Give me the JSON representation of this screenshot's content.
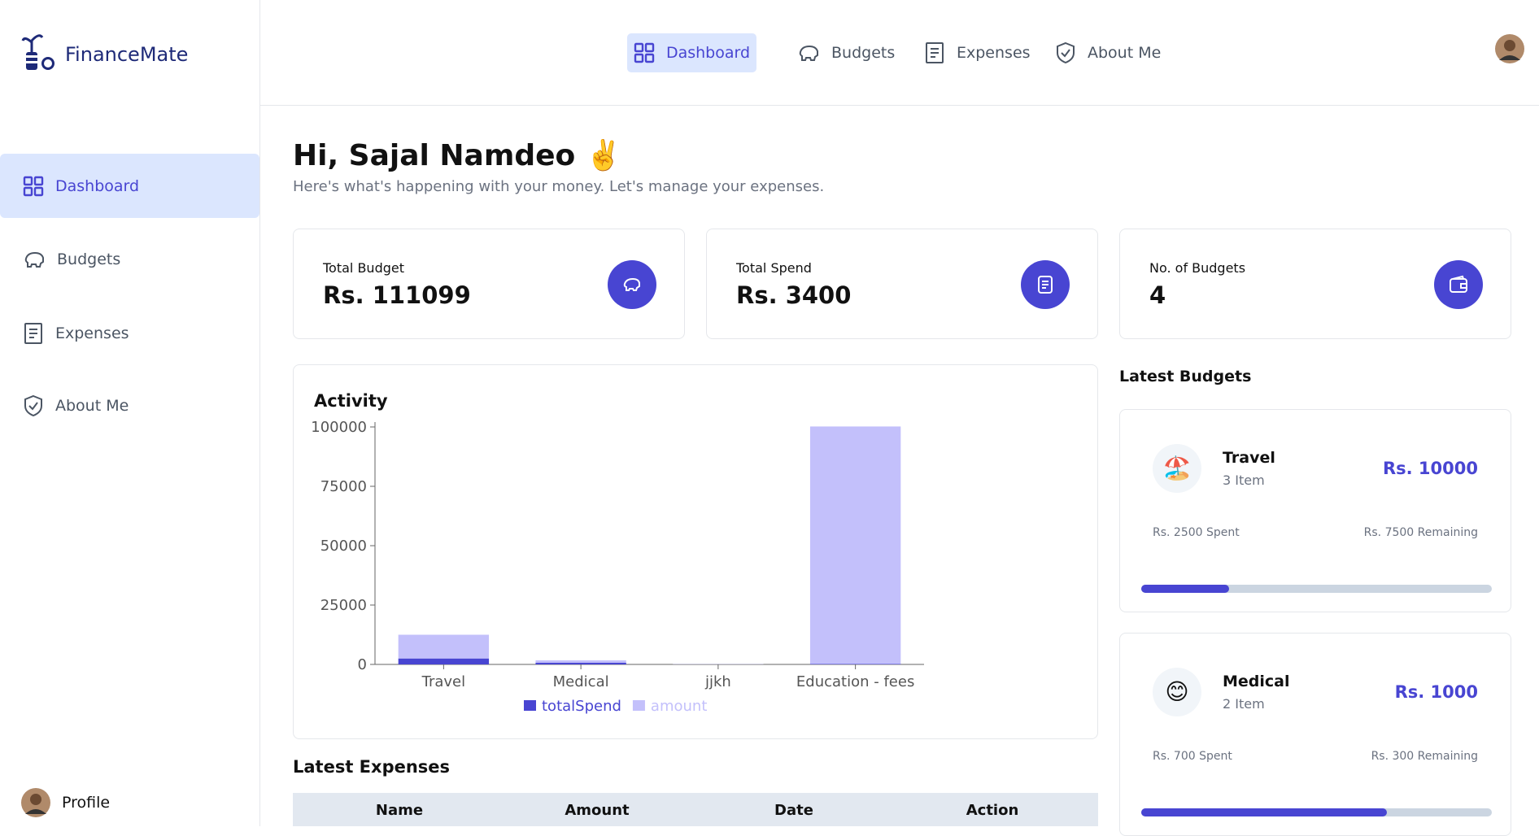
{
  "brand": "FinanceMate",
  "sidebar": {
    "items": [
      "Dashboard",
      "Budgets",
      "Expenses",
      "About Me"
    ],
    "profile": "Profile"
  },
  "topnav": {
    "items": [
      "Dashboard",
      "Budgets",
      "Expenses",
      "About Me"
    ]
  },
  "greeting": {
    "title": "Hi, Sajal Namdeo ✌️",
    "subtitle": "Here's what's happening with your money. Let's manage your expenses."
  },
  "stats": [
    {
      "label": "Total Budget",
      "value": "Rs. 111099"
    },
    {
      "label": "Total Spend",
      "value": "Rs. 3400"
    },
    {
      "label": "No. of Budgets",
      "value": "4"
    }
  ],
  "activity": {
    "type": "bar",
    "title": "Activity",
    "stacked": true,
    "categories": [
      "Travel",
      "Medical",
      "jjkh",
      "Education - fees"
    ],
    "series": [
      {
        "name": "totalSpend",
        "color": "#4845d2",
        "values": [
          2500,
          700,
          0,
          200
        ]
      },
      {
        "name": "amount",
        "color": "#c3c0fb",
        "values": [
          10000,
          1000,
          99,
          100000
        ]
      }
    ],
    "ylim": [
      0,
      100000
    ],
    "yticks": [
      0,
      25000,
      50000,
      75000,
      100000
    ]
  },
  "latest_expenses": {
    "title": "Latest Expenses",
    "columns": [
      "Name",
      "Amount",
      "Date",
      "Action"
    ]
  },
  "latest_budgets": {
    "title": "Latest Budgets",
    "items": [
      {
        "icon": "🏖️",
        "name": "Travel",
        "items": "3 Item",
        "amount_label": "Rs. 10000",
        "amount": 10000,
        "spent_label": "Rs. 2500 Spent",
        "spent": 2500,
        "remaining": "Rs. 7500 Remaining"
      },
      {
        "icon": "😊",
        "name": "Medical",
        "items": "2 Item",
        "amount_label": "Rs. 1000",
        "amount": 1000,
        "spent_label": "Rs. 700 Spent",
        "spent": 700,
        "remaining": "Rs. 300 Remaining"
      }
    ]
  }
}
